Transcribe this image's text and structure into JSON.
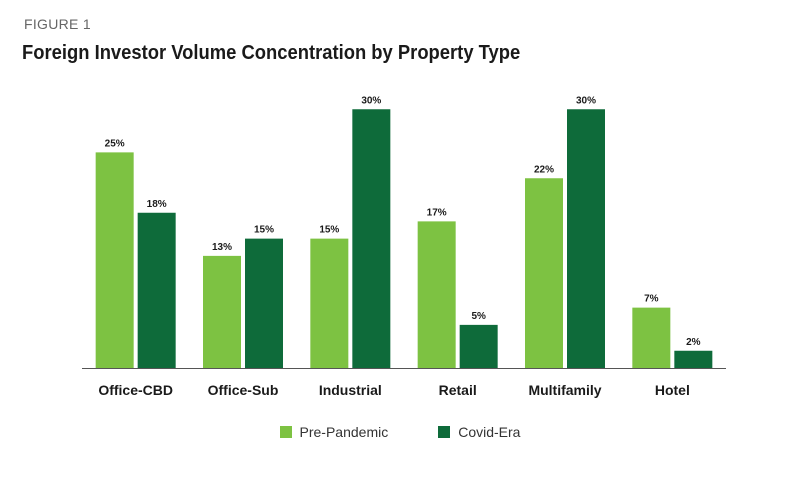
{
  "figure_label": "FIGURE 1",
  "chart_data": {
    "type": "bar",
    "title": "Foreign Investor Volume Concentration by Property Type",
    "xlabel": "",
    "ylabel": "",
    "ylim": [
      0,
      32
    ],
    "categories": [
      "Office-CBD",
      "Office-Sub",
      "Industrial",
      "Retail",
      "Multifamily",
      "Hotel"
    ],
    "series": [
      {
        "name": "Pre-Pandemic",
        "values": [
          25,
          13,
          15,
          17,
          22,
          7
        ],
        "labels": [
          "25%",
          "13%",
          "15%",
          "17%",
          "22%",
          "7%"
        ],
        "color": "#7dc242"
      },
      {
        "name": "Covid-Era",
        "values": [
          18,
          15,
          30,
          5,
          30,
          2
        ],
        "labels": [
          "18%",
          "15%",
          "30%",
          "5%",
          "30%",
          "2%"
        ],
        "color": "#0e6b3a"
      }
    ],
    "grid": false,
    "legend_position": "bottom"
  }
}
